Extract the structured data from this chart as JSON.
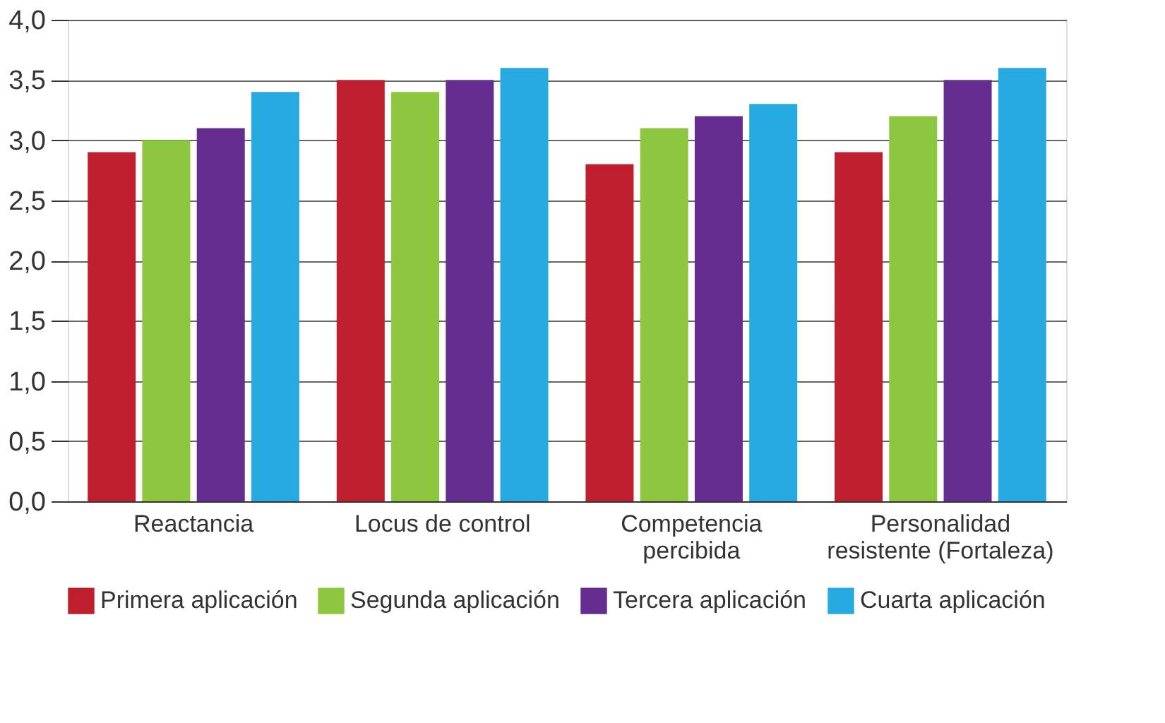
{
  "chart_data": {
    "type": "bar",
    "categories": [
      "Reactancia",
      "Locus de control",
      "Competencia\npercibida",
      "Personalidad\nresistente (Fortaleza)"
    ],
    "series": [
      {
        "name": "Primera aplicación",
        "color": "#be1e2d",
        "values": [
          2.9,
          3.5,
          2.8,
          2.9
        ]
      },
      {
        "name": "Segunda aplicación",
        "color": "#8dc63f",
        "values": [
          3.0,
          3.4,
          3.1,
          3.2
        ]
      },
      {
        "name": "Tercera aplicación",
        "color": "#662d91",
        "values": [
          3.1,
          3.5,
          3.2,
          3.5
        ]
      },
      {
        "name": "Cuarta aplicación",
        "color": "#27aae1",
        "values": [
          3.4,
          3.6,
          3.3,
          3.6
        ]
      }
    ],
    "ylim": [
      0,
      4
    ],
    "yticks": [
      {
        "value": 0,
        "label": "0,0"
      },
      {
        "value": 0.5,
        "label": "0,5"
      },
      {
        "value": 1,
        "label": "1,0"
      },
      {
        "value": 1.5,
        "label": "1,5"
      },
      {
        "value": 2,
        "label": "2,0"
      },
      {
        "value": 2.5,
        "label": "2,5"
      },
      {
        "value": 3,
        "label": "3,0"
      },
      {
        "value": 3.5,
        "label": "3,5"
      },
      {
        "value": 4,
        "label": "4,0"
      }
    ],
    "grid": "y",
    "legend": "bottom"
  }
}
